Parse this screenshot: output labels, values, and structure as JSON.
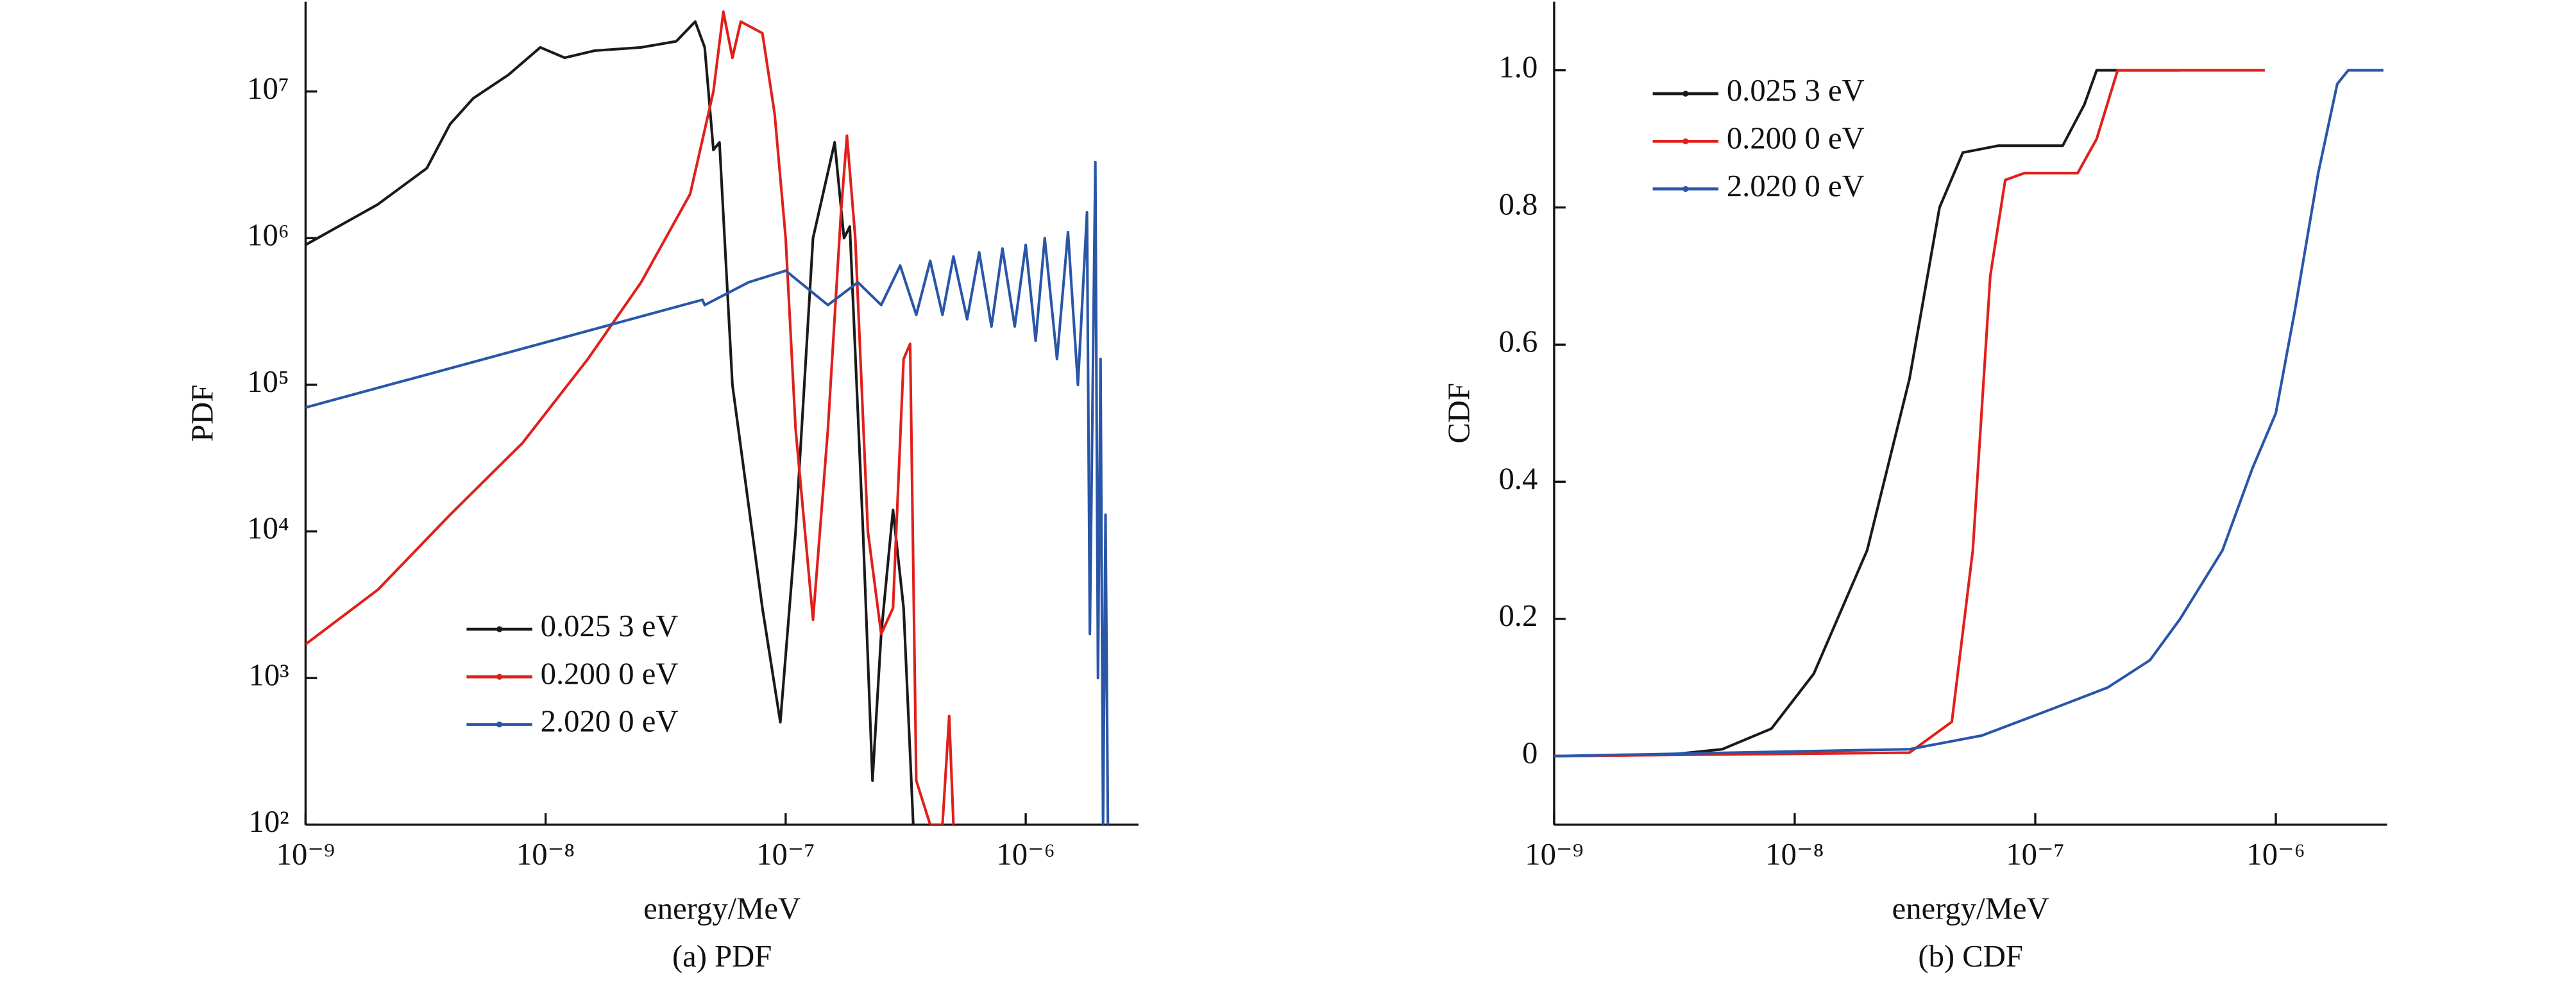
{
  "chart_data": [
    {
      "type": "line",
      "subtitle": "(a) PDF",
      "xlabel": "energy/MeV",
      "ylabel": "PDF",
      "xscale": "log",
      "yscale": "log",
      "legend": "lower center",
      "xlim": [
        1e-09,
        2.95e-06
      ],
      "ylim": [
        100,
        41000000.0
      ],
      "xticks": [
        {
          "value": 1e-09,
          "label": "10⁻⁹"
        },
        {
          "value": 1e-08,
          "label": "10⁻⁸"
        },
        {
          "value": 1e-07,
          "label": "10⁻⁷"
        },
        {
          "value": 1e-06,
          "label": "10⁻⁶"
        }
      ],
      "yticks": [
        {
          "value": 100,
          "label": "10²"
        },
        {
          "value": 1000,
          "label": "10³"
        },
        {
          "value": 10000,
          "label": "10⁴"
        },
        {
          "value": 100000,
          "label": "10⁵"
        },
        {
          "value": 1000000,
          "label": "10⁶"
        },
        {
          "value": 10000000,
          "label": "10⁷"
        }
      ],
      "series": [
        {
          "name": "0.025 3 eV",
          "color": "#1a1a1a",
          "x": [
            1e-09,
            2e-09,
            3.2e-09,
            4e-09,
            5e-09,
            7e-09,
            9.5e-09,
            1.2e-08,
            1.6e-08,
            2.5e-08,
            3.5e-08,
            4.2e-08,
            4.6e-08,
            5e-08,
            5.3e-08,
            6e-08,
            8e-08,
            9.5e-08,
            1.1e-07,
            1.3e-07,
            1.6e-07,
            1.75e-07,
            1.85e-07,
            2.1e-07,
            2.3e-07,
            2.5e-07,
            2.8e-07,
            3.1e-07,
            3.4e-07
          ],
          "values": [
            900000,
            1700000,
            3000000,
            6000000,
            9000000,
            13000000,
            20000000,
            17000000,
            19000000,
            20000000,
            22000000,
            30000000,
            20000000,
            4000000,
            4500000,
            100000,
            3000,
            500,
            10000,
            1000000,
            4500000,
            1000000,
            1200000,
            10000,
            200,
            2000,
            14000,
            3000,
            100
          ]
        },
        {
          "name": "0.200 0 eV",
          "color": "#e0201b",
          "x": [
            1e-09,
            2e-09,
            4e-09,
            8e-09,
            1.5e-08,
            2.5e-08,
            4e-08,
            5e-08,
            5.5e-08,
            6e-08,
            6.5e-08,
            8e-08,
            9e-08,
            1e-07,
            1.1e-07,
            1.3e-07,
            1.5e-07,
            1.7e-07,
            1.8e-07,
            1.95e-07,
            2.2e-07,
            2.5e-07,
            2.8e-07,
            3.1e-07,
            3.3e-07,
            3.5e-07,
            4e-07,
            4.5e-07,
            4.8e-07,
            5e-07
          ],
          "values": [
            1700,
            4000,
            13000,
            40000,
            150000,
            500000,
            2000000,
            10000000,
            35000000,
            17000000,
            30000000,
            25000000,
            7000000,
            1000000,
            50000,
            2500,
            50000,
            1500000,
            5000000,
            1000000,
            10000,
            2000,
            3000,
            150000,
            190000,
            200,
            100,
            100,
            550,
            100
          ]
        },
        {
          "name": "2.020 0 eV",
          "color": "#2a56a8",
          "x": [
            1e-09,
            4.5e-08,
            4.6e-08,
            7e-08,
            1e-07,
            1.5e-07,
            2e-07,
            2.5e-07,
            3e-07,
            3.5e-07,
            4e-07,
            4.5e-07,
            5e-07,
            5.7e-07,
            6.4e-07,
            7.2e-07,
            8e-07,
            9e-07,
            1e-06,
            1.1e-06,
            1.2e-06,
            1.35e-06,
            1.5e-06,
            1.65e-06,
            1.8e-06,
            1.85e-06,
            1.95e-06,
            2e-06,
            2.05e-06,
            2.1e-06,
            2.15e-06,
            2.2e-06
          ],
          "values": [
            70000,
            380000,
            350000,
            500000,
            600000,
            350000,
            500000,
            350000,
            650000,
            300000,
            700000,
            300000,
            750000,
            280000,
            800000,
            250000,
            850000,
            250000,
            900000,
            200000,
            1000000,
            150000,
            1100000,
            100000,
            1500000,
            2000,
            3300000,
            1000,
            150000,
            100,
            13000,
            100
          ]
        }
      ]
    },
    {
      "type": "line",
      "subtitle": "(b) CDF",
      "xlabel": "energy/MeV",
      "ylabel": "CDF",
      "xscale": "log",
      "legend": "upper left",
      "xlim": [
        1e-09,
        2.9e-06
      ],
      "ylim": [
        -0.1,
        1.1
      ],
      "xticks": [
        {
          "value": 1e-09,
          "label": "10⁻⁹"
        },
        {
          "value": 1e-08,
          "label": "10⁻⁸"
        },
        {
          "value": 1e-07,
          "label": "10⁻⁷"
        },
        {
          "value": 1e-06,
          "label": "10⁻⁶"
        }
      ],
      "yticks": [
        0,
        0.2,
        0.4,
        0.6,
        0.8,
        {
          "value": 1,
          "label": "1.0"
        }
      ],
      "series": [
        {
          "name": "0.025 3 eV",
          "color": "#1a1a1a",
          "x": [
            1e-09,
            3e-09,
            5e-09,
            8e-09,
            1.2e-08,
            2e-08,
            3e-08,
            4e-08,
            5e-08,
            7e-08,
            1.3e-07,
            1.6e-07,
            1.8e-07,
            4e-07
          ],
          "values": [
            0,
            0.002,
            0.01,
            0.04,
            0.12,
            0.3,
            0.55,
            0.8,
            0.88,
            0.89,
            0.89,
            0.95,
            1,
            1
          ]
        },
        {
          "name": "0.200 0 eV",
          "color": "#e0201b",
          "x": [
            1e-09,
            3e-08,
            4.5e-08,
            5.5e-08,
            6.5e-08,
            7.5e-08,
            9e-08,
            1.5e-07,
            1.8e-07,
            2.2e-07,
            9e-07
          ],
          "values": [
            0,
            0.005,
            0.05,
            0.3,
            0.7,
            0.84,
            0.85,
            0.85,
            0.9,
            1,
            1
          ]
        },
        {
          "name": "2.020 0 eV",
          "color": "#2a56a8",
          "x": [
            1e-09,
            3e-08,
            6e-08,
            1.2e-07,
            2e-07,
            3e-07,
            4e-07,
            6e-07,
            8e-07,
            1e-06,
            1.2e-06,
            1.5e-06,
            1.8e-06,
            2e-06,
            2.8e-06
          ],
          "values": [
            0,
            0.01,
            0.03,
            0.07,
            0.1,
            0.14,
            0.2,
            0.3,
            0.42,
            0.5,
            0.65,
            0.85,
            0.98,
            1,
            1
          ]
        }
      ]
    }
  ]
}
